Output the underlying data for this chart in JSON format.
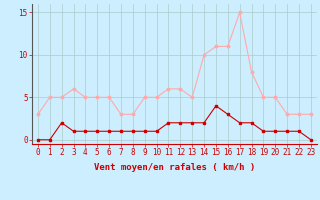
{
  "hours": [
    0,
    1,
    2,
    3,
    4,
    5,
    6,
    7,
    8,
    9,
    10,
    11,
    12,
    13,
    14,
    15,
    16,
    17,
    18,
    19,
    20,
    21,
    22,
    23
  ],
  "wind_avg": [
    0,
    0,
    2,
    1,
    1,
    1,
    1,
    1,
    1,
    1,
    1,
    2,
    2,
    2,
    2,
    4,
    3,
    2,
    2,
    1,
    1,
    1,
    1,
    0
  ],
  "wind_gust": [
    3,
    5,
    5,
    6,
    5,
    5,
    5,
    3,
    3,
    5,
    5,
    6,
    6,
    5,
    10,
    11,
    11,
    15,
    8,
    5,
    5,
    3,
    3,
    3
  ],
  "bg_color": "#cceeff",
  "grid_color": "#aacccc",
  "avg_color": "#cc0000",
  "gust_color": "#ffaaaa",
  "axis_color": "#cc0000",
  "xlabel": "Vent moyen/en rafales ( km/h )",
  "xlabel_fontsize": 6.5,
  "tick_fontsize": 5.5,
  "yticks": [
    0,
    5,
    10,
    15
  ],
  "ylim": [
    -0.5,
    16
  ],
  "xlim": [
    -0.5,
    23.5
  ]
}
